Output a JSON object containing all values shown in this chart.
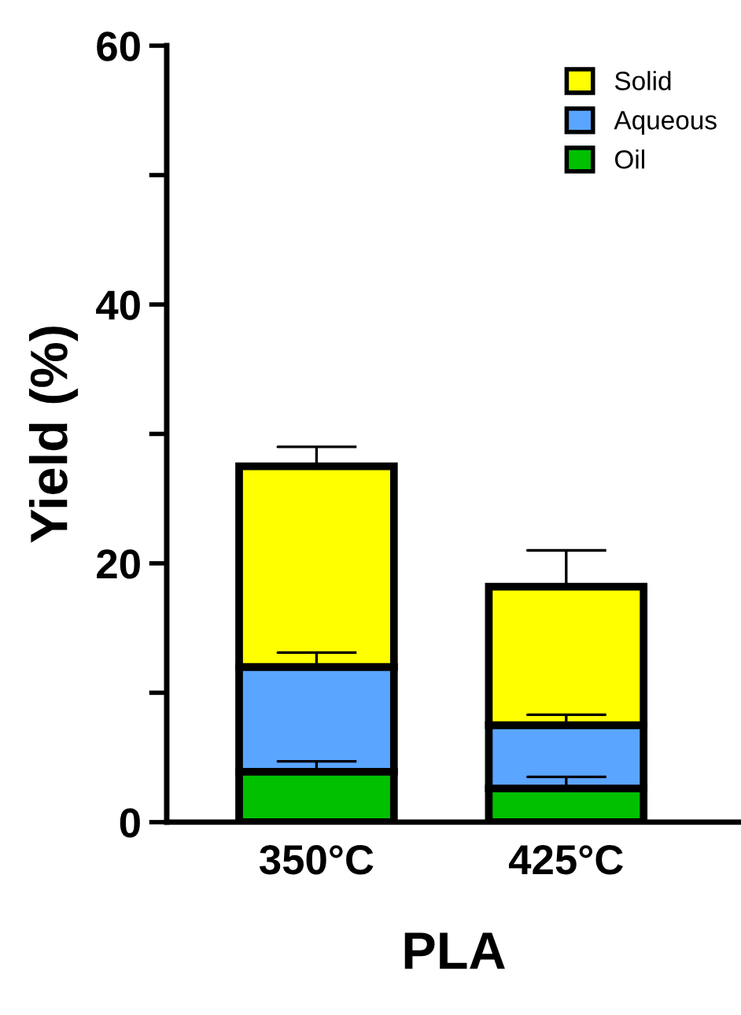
{
  "chart_data": {
    "type": "bar",
    "stacked": true,
    "xlabel": "PLA",
    "ylabel": "Yield (%)",
    "categories": [
      "350°C",
      "425°C"
    ],
    "series": [
      {
        "name": "Oil",
        "color": "#00c000",
        "values": [
          3.9,
          2.6
        ],
        "errors": [
          [
            3.9,
            4.7
          ],
          [
            2.6,
            3.5
          ]
        ]
      },
      {
        "name": "Aqueous",
        "color": "#5aa5ff",
        "values": [
          8.1,
          4.9
        ],
        "errors": [
          [
            12.0,
            13.1
          ],
          [
            7.5,
            8.3
          ]
        ]
      },
      {
        "name": "Solid",
        "color": "#ffff00",
        "values": [
          15.5,
          10.7
        ],
        "errors": [
          [
            27.5,
            29.0
          ],
          [
            18.2,
            21.0
          ]
        ]
      }
    ],
    "ylim": [
      0,
      60
    ],
    "yticks": [
      0,
      {
        "value": 10,
        "label": null
      },
      20,
      {
        "value": 30,
        "label": null
      },
      40,
      {
        "value": 50,
        "label": null
      },
      60
    ],
    "legend": "top right",
    "grid": false
  }
}
